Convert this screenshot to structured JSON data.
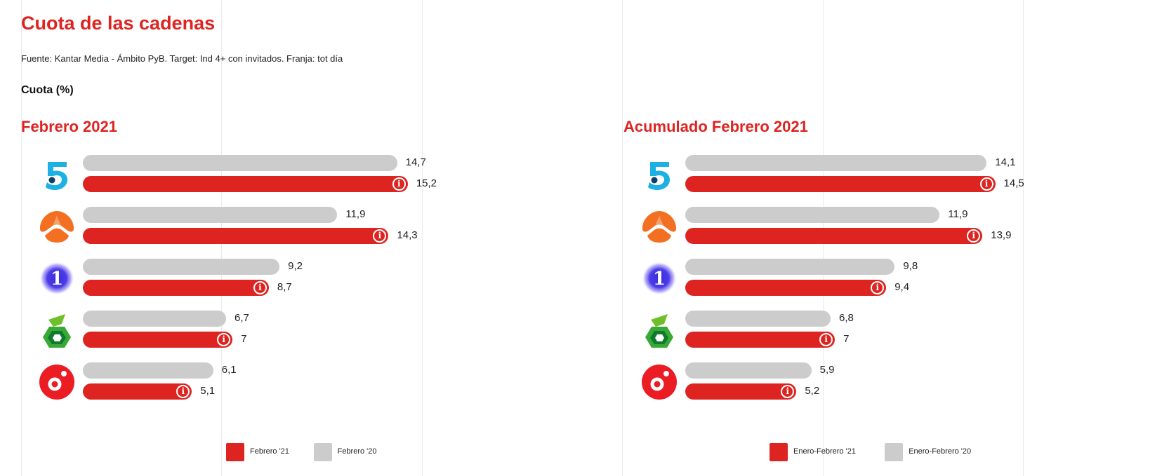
{
  "title": "Cuota de las cadenas",
  "source": "Fuente: Kantar Media - Ámbito PyB. Target: Ind 4+ con invitados. Franja: tot día",
  "unit_label": "Cuota (%)",
  "colors": {
    "current": "#dd2421",
    "previous": "#cccccc",
    "title": "#dd2421"
  },
  "channels": [
    {
      "name": "Telecinco",
      "icon": "telecinco-logo-icon"
    },
    {
      "name": "Antena 3",
      "icon": "antena3-logo-icon"
    },
    {
      "name": "La 1",
      "icon": "la1-logo-icon"
    },
    {
      "name": "laSexta",
      "icon": "lasexta-logo-icon"
    },
    {
      "name": "Cuatro",
      "icon": "cuatro-logo-icon"
    }
  ],
  "chart_data": [
    {
      "type": "bar",
      "title": "Febrero 2021",
      "categories": [
        "Telecinco",
        "Antena 3",
        "La 1",
        "laSexta",
        "Cuatro"
      ],
      "series": [
        {
          "name": "Febrero '20",
          "values": [
            14.7,
            11.9,
            9.2,
            6.7,
            6.1
          ],
          "labels": [
            "14,7",
            "11,9",
            "9,2",
            "6,7",
            "6,1"
          ]
        },
        {
          "name": "Febrero '21",
          "values": [
            15.2,
            14.3,
            8.7,
            7,
            5.1
          ],
          "labels": [
            "15,2",
            "14,3",
            "8,7",
            "7",
            "5,1"
          ]
        }
      ],
      "legend": [
        "Febrero '21",
        "Febrero '20"
      ],
      "grid": true
    },
    {
      "type": "bar",
      "title": "Acumulado Febrero 2021",
      "categories": [
        "Telecinco",
        "Antena 3",
        "La 1",
        "laSexta",
        "Cuatro"
      ],
      "series": [
        {
          "name": "Enero-Febrero '20",
          "values": [
            14.1,
            11.9,
            9.8,
            6.8,
            5.9
          ],
          "labels": [
            "14,1",
            "11,9",
            "9,8",
            "6,8",
            "5,9"
          ]
        },
        {
          "name": "Enero-Febrero '21",
          "values": [
            14.5,
            13.9,
            9.4,
            7,
            5.2
          ],
          "labels": [
            "14,5",
            "13,9",
            "9,4",
            "7",
            "5,2"
          ]
        }
      ],
      "legend": [
        "Enero-Febrero '21",
        "Enero-Febrero '20"
      ],
      "grid": true
    }
  ]
}
